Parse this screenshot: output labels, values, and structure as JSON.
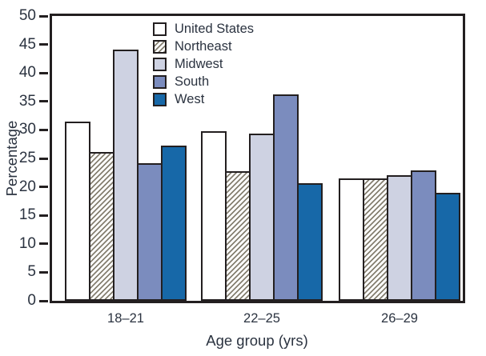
{
  "chart_data": {
    "type": "bar",
    "title": "",
    "xlabel": "Age group (yrs)",
    "ylabel": "Percentage",
    "ylim": [
      0,
      50
    ],
    "yticks": [
      0,
      5,
      10,
      15,
      20,
      25,
      30,
      35,
      40,
      45,
      50
    ],
    "categories": [
      "18–21",
      "22–25",
      "26–29"
    ],
    "series": [
      {
        "name": "United States",
        "values": [
          31.5,
          29.8,
          21.5
        ],
        "fill": "#ffffff",
        "pattern": "solid"
      },
      {
        "name": "Northeast",
        "values": [
          26.1,
          22.8,
          21.5
        ],
        "fill": "#ffffff",
        "pattern": "diagonal-hatch"
      },
      {
        "name": "Midwest",
        "values": [
          44.1,
          29.4,
          22.0
        ],
        "fill": "#ced2e2",
        "pattern": "solid"
      },
      {
        "name": "South",
        "values": [
          24.1,
          36.2,
          22.9
        ],
        "fill": "#7b8cbe",
        "pattern": "solid"
      },
      {
        "name": "West",
        "values": [
          27.2,
          20.7,
          18.9
        ],
        "fill": "#1768a8",
        "pattern": "solid"
      }
    ],
    "legend_position": "top-inside",
    "grid": false
  },
  "colors": {
    "ink": "#231f20",
    "text": "#2b3340",
    "hatch_line": "#857f70",
    "background": "#ffffff"
  }
}
